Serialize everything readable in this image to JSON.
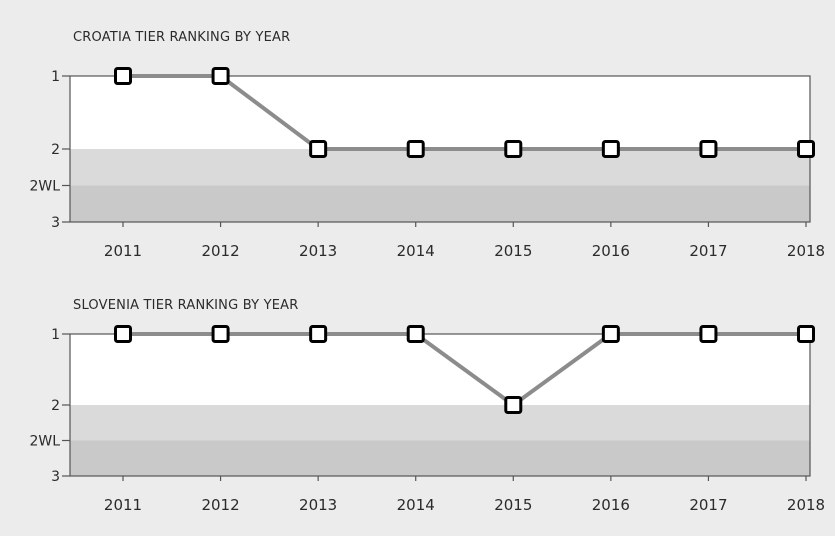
{
  "colors": {
    "background": "#ececec",
    "plot_bg": "#ffffff",
    "band_light": "#dadada",
    "band_dark": "#c9c9c9",
    "line": "#8c8c8c",
    "axis": "#555555",
    "marker_fill": "#ffffff",
    "marker_stroke": "#000000",
    "text": "#2b2b2b"
  },
  "chart_data": [
    {
      "type": "line",
      "title": "CROATIA TIER RANKING BY YEAR",
      "categories": [
        "2011",
        "2012",
        "2013",
        "2014",
        "2015",
        "2016",
        "2017",
        "2018"
      ],
      "y_tick_labels": [
        "1",
        "2",
        "2WL",
        "3"
      ],
      "y_tick_values": [
        1,
        2,
        2.5,
        3
      ],
      "ylim": [
        1,
        3
      ],
      "y_inverted": true,
      "series": [
        {
          "values": [
            1,
            1,
            2,
            2,
            2,
            2,
            2,
            2
          ]
        }
      ],
      "shaded_bands": [
        {
          "from": 2,
          "to": 2.5,
          "shade": "light"
        },
        {
          "from": 2.5,
          "to": 3,
          "shade": "dark"
        }
      ],
      "grid": false,
      "legend": "none"
    },
    {
      "type": "line",
      "title": "SLOVENIA TIER RANKING BY YEAR",
      "categories": [
        "2011",
        "2012",
        "2013",
        "2014",
        "2015",
        "2016",
        "2017",
        "2018"
      ],
      "y_tick_labels": [
        "1",
        "2",
        "2WL",
        "3"
      ],
      "y_tick_values": [
        1,
        2,
        2.5,
        3
      ],
      "ylim": [
        1,
        3
      ],
      "y_inverted": true,
      "series": [
        {
          "values": [
            1,
            1,
            1,
            1,
            2,
            1,
            1,
            1
          ]
        }
      ],
      "shaded_bands": [
        {
          "from": 2,
          "to": 2.5,
          "shade": "light"
        },
        {
          "from": 2.5,
          "to": 3,
          "shade": "dark"
        }
      ],
      "grid": false,
      "legend": "none"
    }
  ]
}
